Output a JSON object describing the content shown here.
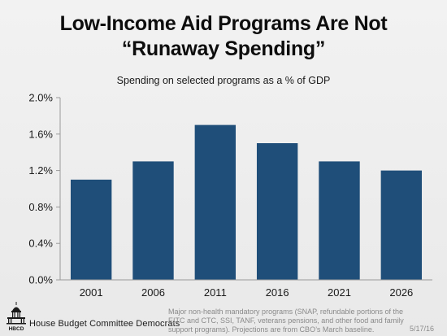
{
  "header": {
    "title_line1": "Low-Income Aid Programs Are Not",
    "title_line2": "“Runaway Spending”",
    "subtitle": "Spending on selected programs as a % of GDP"
  },
  "chart_data": {
    "type": "bar",
    "categories": [
      "2001",
      "2006",
      "2011",
      "2016",
      "2021",
      "2026"
    ],
    "values": [
      1.1,
      1.3,
      1.7,
      1.5,
      1.3,
      1.2
    ],
    "ylim": [
      0,
      2.0
    ],
    "yticks": [
      0.0,
      0.4,
      0.8,
      1.2,
      1.6,
      2.0
    ],
    "ytick_labels": [
      "0.0%",
      "0.4%",
      "0.8%",
      "1.2%",
      "1.6%",
      "2.0%"
    ],
    "title": "Spending on selected programs as a % of GDP",
    "xlabel": "",
    "ylabel": "",
    "grid": false,
    "bar_color": "#1f4e79"
  },
  "footer": {
    "logo_text": "HBCD",
    "org_name": "House Budget Committee Democrats",
    "footnote": "Major non-health mandatory programs (SNAP, refundable portions of the EITC and CTC, SSI, TANF, veterans pensions, and other food and family support programs). Projections are from CBO’s March baseline.",
    "date": "5/17/16"
  }
}
